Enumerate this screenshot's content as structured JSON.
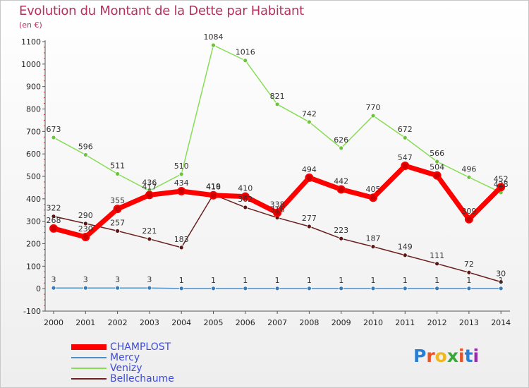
{
  "title": "Evolution du Montant de la Dette par Habitant",
  "subtitle": "(en €)",
  "brand": {
    "name": "Proxiti",
    "colors": [
      "#2a7fd4",
      "#e8542a",
      "#f0b81e",
      "#3aa53a",
      "#e8542a",
      "#2a7fd4",
      "#9c27b0"
    ]
  },
  "chart_data": {
    "type": "line",
    "title": "Evolution du Montant de la Dette par Habitant",
    "ylabel": "(en €)",
    "xlabel": "",
    "x": [
      "2000",
      "2001",
      "2002",
      "2003",
      "2004",
      "2005",
      "2006",
      "2007",
      "2008",
      "2009",
      "2010",
      "2011",
      "2012",
      "2013",
      "2014"
    ],
    "ylim": [
      -100,
      1100
    ],
    "yticks": [
      "-100",
      "0",
      "100",
      "200",
      "300",
      "400",
      "500",
      "600",
      "700",
      "800",
      "900",
      "1000",
      "1100"
    ],
    "grid": false,
    "legend_position": "bottom-left",
    "series": [
      {
        "name": "CHAMPLOST",
        "color": "#ff0000",
        "marker_color": "#cc0000",
        "width": 7,
        "values": [
          268,
          230,
          355,
          417,
          434,
          416,
          410,
          338,
          494,
          442,
          405,
          547,
          504,
          309,
          452
        ]
      },
      {
        "name": "Mercy",
        "color": "#4d8fc4",
        "marker_color": "#3b7ab5",
        "width": 1.5,
        "values": [
          3,
          3,
          3,
          3,
          1,
          1,
          1,
          1,
          1,
          1,
          1,
          1,
          1,
          1,
          1
        ]
      },
      {
        "name": "Venizy",
        "color": "#88dd55",
        "marker_color": "#6cc43c",
        "width": 1.5,
        "values": [
          673,
          596,
          511,
          436,
          510,
          1084,
          1016,
          821,
          742,
          626,
          770,
          672,
          566,
          496,
          428
        ]
      },
      {
        "name": "Bellechaume",
        "color": "#6b1f1f",
        "marker_color": "#5a1515",
        "width": 1.5,
        "values": [
          322,
          290,
          257,
          221,
          183,
          419,
          362,
          316,
          277,
          223,
          187,
          149,
          111,
          72,
          30
        ]
      }
    ]
  }
}
